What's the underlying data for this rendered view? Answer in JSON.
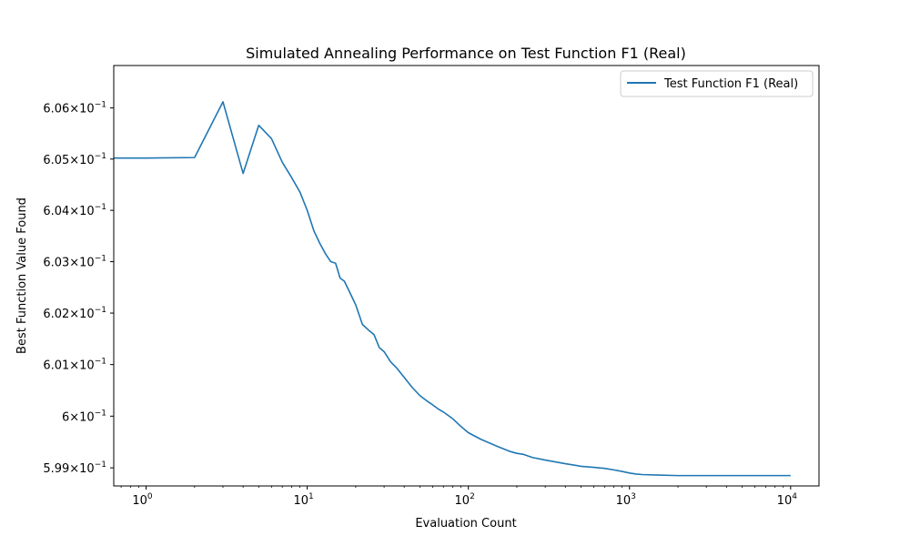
{
  "chart_data": {
    "type": "line",
    "title": "Simulated Annealing Performance on Test Function F1 (Real)",
    "xlabel": "Evaluation Count",
    "ylabel": "Best Function Value Found",
    "xscale": "log",
    "yscale": "log",
    "xlim": [
      0.63,
      15000
    ],
    "ylim": [
      0.59865,
      0.60683
    ],
    "grid": false,
    "legend": "top-right",
    "x_ticks": [
      {
        "value": 1,
        "base": "10",
        "exp": "0"
      },
      {
        "value": 10,
        "base": "10",
        "exp": "1"
      },
      {
        "value": 100,
        "base": "10",
        "exp": "2"
      },
      {
        "value": 1000,
        "base": "10",
        "exp": "3"
      },
      {
        "value": 10000,
        "base": "10",
        "exp": "4"
      }
    ],
    "y_ticks": [
      {
        "value": 0.599,
        "mantissa": "5.99",
        "base": "10",
        "exp": "−1"
      },
      {
        "value": 0.6,
        "mantissa": "6",
        "base": "10",
        "exp": "−1"
      },
      {
        "value": 0.601,
        "mantissa": "6.01",
        "base": "10",
        "exp": "−1"
      },
      {
        "value": 0.602,
        "mantissa": "6.02",
        "base": "10",
        "exp": "−1"
      },
      {
        "value": 0.603,
        "mantissa": "6.03",
        "base": "10",
        "exp": "−1"
      },
      {
        "value": 0.604,
        "mantissa": "6.04",
        "base": "10",
        "exp": "−1"
      },
      {
        "value": 0.605,
        "mantissa": "6.05",
        "base": "10",
        "exp": "−1"
      },
      {
        "value": 0.606,
        "mantissa": "6.06",
        "base": "10",
        "exp": "−1"
      }
    ],
    "series": [
      {
        "name": "Test Function F1 (Real)",
        "color": "#1f77b4",
        "x": [
          0.5,
          1,
          2,
          3,
          4,
          5,
          6,
          7,
          8,
          9,
          10,
          11,
          12,
          13,
          14,
          15,
          16,
          17,
          18,
          20,
          22,
          24,
          26,
          28,
          30,
          33,
          36,
          40,
          45,
          50,
          55,
          60,
          65,
          70,
          80,
          90,
          100,
          120,
          150,
          180,
          200,
          220,
          250,
          300,
          400,
          500,
          600,
          700,
          800,
          900,
          1000,
          1100,
          1200,
          1500,
          2000,
          3000,
          5000,
          10000
        ],
        "y": [
          0.60502,
          0.60502,
          0.60503,
          0.60612,
          0.60472,
          0.60566,
          0.6054,
          0.60494,
          0.60464,
          0.60436,
          0.604,
          0.6036,
          0.60335,
          0.60315,
          0.603,
          0.60297,
          0.60268,
          0.60262,
          0.60246,
          0.60216,
          0.60178,
          0.60167,
          0.60158,
          0.60133,
          0.60125,
          0.60105,
          0.60093,
          0.60075,
          0.60055,
          0.6004,
          0.6003,
          0.60022,
          0.60014,
          0.60008,
          0.59995,
          0.5998,
          0.59968,
          0.59955,
          0.59942,
          0.59932,
          0.59928,
          0.59926,
          0.5992,
          0.59915,
          0.59908,
          0.59903,
          0.59901,
          0.59899,
          0.59896,
          0.59893,
          0.5989,
          0.59888,
          0.59887,
          0.59886,
          0.59885,
          0.59885,
          0.59885,
          0.59885
        ]
      }
    ]
  }
}
